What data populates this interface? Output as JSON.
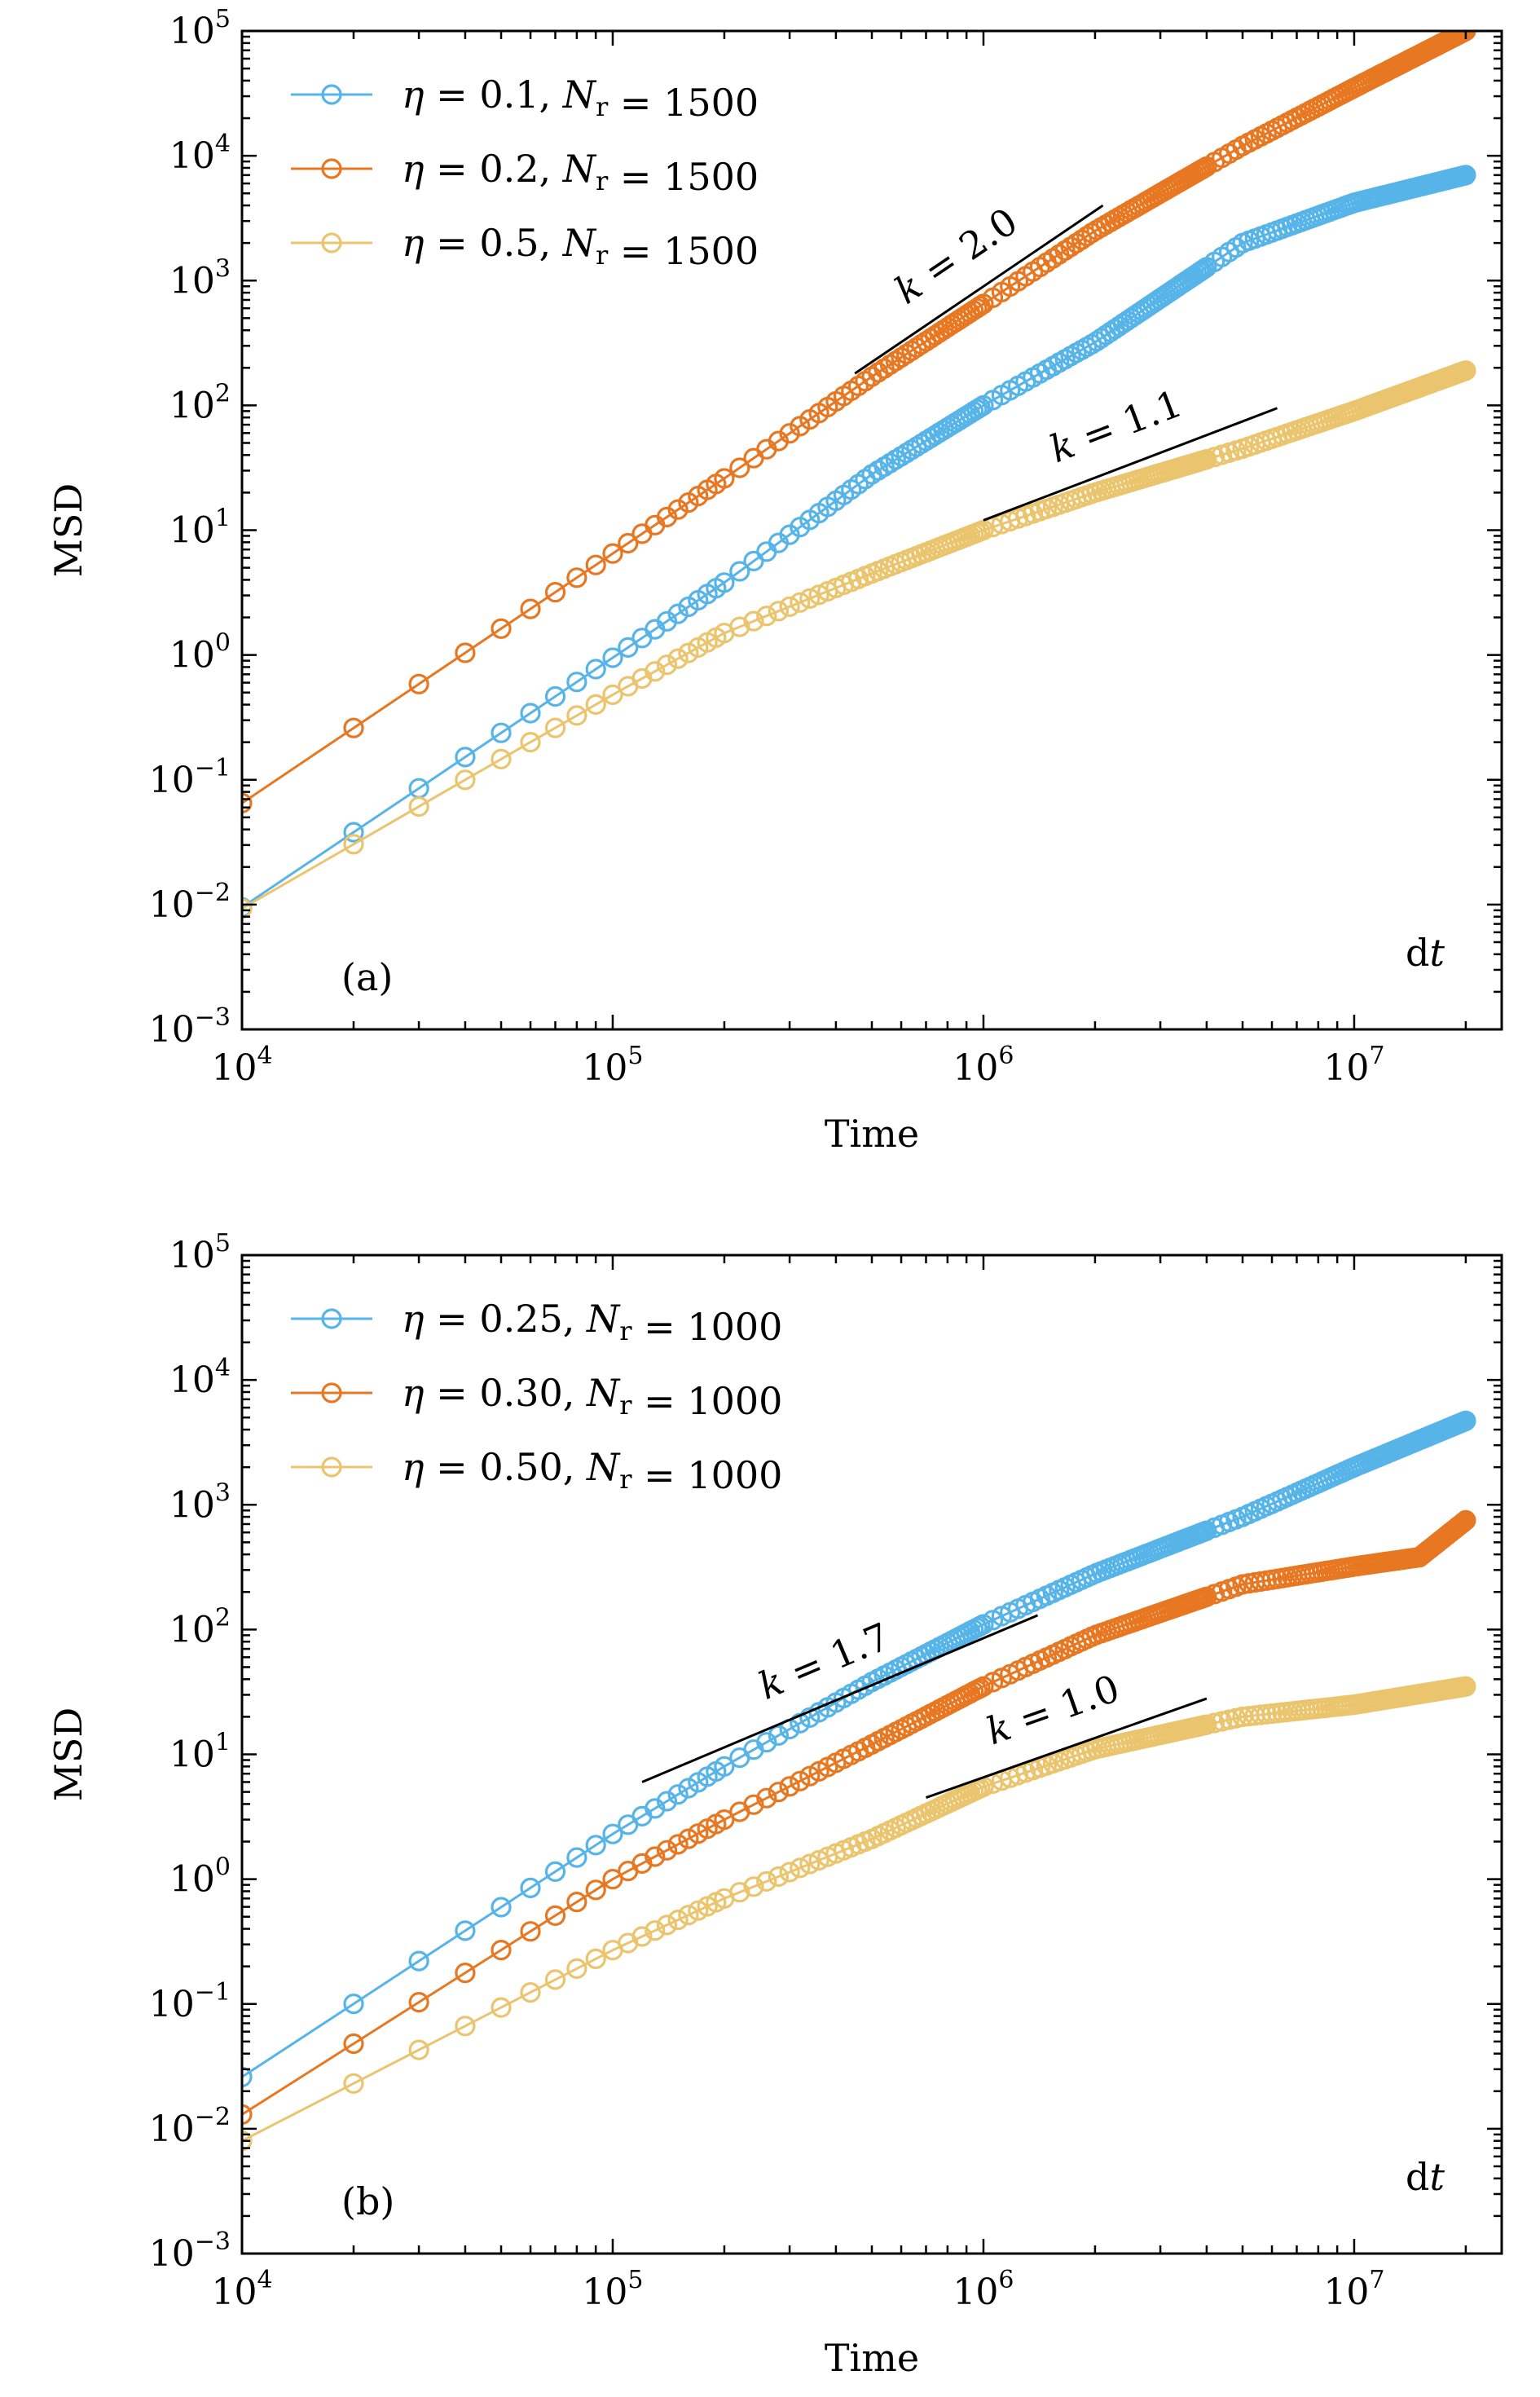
{
  "chart_data": [
    {
      "type": "line",
      "panel_label": "(a)",
      "corner_note": "dt",
      "xlabel": "Time",
      "ylabel": "MSD",
      "xscale": "log",
      "yscale": "log",
      "xlim": [
        10000,
        25000000
      ],
      "ylim": [
        0.001,
        100000
      ],
      "x_ticks": [
        "10^4",
        "10^5",
        "10^6",
        "10^7"
      ],
      "y_ticks": [
        "10^-3",
        "10^-2",
        "10^-1",
        "10^0",
        "10^1",
        "10^2",
        "10^3",
        "10^4",
        "10^5"
      ],
      "legend_position": "top-left",
      "marker": "open-circle",
      "series": [
        {
          "name": "η = 0.1,  Nr = 1500",
          "color": "#56B4E9",
          "points": [
            [
              10000,
              0.0095
            ],
            [
              100000,
              0.95
            ],
            [
              200000,
              3.8
            ],
            [
              500000,
              28
            ],
            [
              1000000,
              100
            ],
            [
              2000000,
              320
            ],
            [
              5000000,
              2000
            ],
            [
              10000000,
              4200
            ],
            [
              20000000,
              7000
            ]
          ]
        },
        {
          "name": "η = 0.2,  Nr = 1500",
          "color": "#E87722",
          "points": [
            [
              10000,
              0.065
            ],
            [
              100000,
              6.5
            ],
            [
              200000,
              26
            ],
            [
              500000,
              170
            ],
            [
              1000000,
              650
            ],
            [
              2000000,
              2500
            ],
            [
              5000000,
              12000
            ],
            [
              10000000,
              35000
            ],
            [
              20000000,
              100000
            ]
          ]
        },
        {
          "name": "η = 0.5,  Nr = 1500",
          "color": "#EBC46E",
          "points": [
            [
              10000,
              0.0093
            ],
            [
              100000,
              0.48
            ],
            [
              200000,
              1.5
            ],
            [
              500000,
              4.5
            ],
            [
              1000000,
              10
            ],
            [
              2000000,
              20
            ],
            [
              5000000,
              45
            ],
            [
              10000000,
              90
            ],
            [
              20000000,
              190
            ]
          ]
        }
      ],
      "annotations": [
        {
          "text": "k = 2.0",
          "x1": 450000,
          "y1": 180,
          "x2": 2100000,
          "y2": 4000
        },
        {
          "text": "k = 1.1",
          "x1": 1000000,
          "y1": 12,
          "x2": 6200000,
          "y2": 95
        }
      ]
    },
    {
      "type": "line",
      "panel_label": "(b)",
      "corner_note": "dt",
      "xlabel": "Time",
      "ylabel": "MSD",
      "xscale": "log",
      "yscale": "log",
      "xlim": [
        10000,
        25000000
      ],
      "ylim": [
        0.001,
        100000
      ],
      "x_ticks": [
        "10^4",
        "10^5",
        "10^6",
        "10^7"
      ],
      "y_ticks": [
        "10^-3",
        "10^-2",
        "10^-1",
        "10^0",
        "10^1",
        "10^2",
        "10^3",
        "10^4",
        "10^5"
      ],
      "legend_position": "top-left",
      "marker": "open-circle",
      "series": [
        {
          "name": "η = 0.25,  Nr = 1000",
          "color": "#56B4E9",
          "points": [
            [
              10000,
              0.026
            ],
            [
              100000,
              2.3
            ],
            [
              200000,
              8
            ],
            [
              500000,
              38
            ],
            [
              1000000,
              110
            ],
            [
              2000000,
              280
            ],
            [
              5000000,
              800
            ],
            [
              10000000,
              2000
            ],
            [
              20000000,
              4700
            ]
          ]
        },
        {
          "name": "η = 0.30,  Nr = 1000",
          "color": "#E87722",
          "points": [
            [
              10000,
              0.013
            ],
            [
              100000,
              1.0
            ],
            [
              200000,
              3.0
            ],
            [
              500000,
              12
            ],
            [
              1000000,
              35
            ],
            [
              2000000,
              90
            ],
            [
              5000000,
              230
            ],
            [
              10000000,
              320
            ],
            [
              15000000,
              380
            ],
            [
              20000000,
              750
            ]
          ]
        },
        {
          "name": "η = 0.50,  Nr = 1000",
          "color": "#EBC46E",
          "points": [
            [
              10000,
              0.008
            ],
            [
              100000,
              0.27
            ],
            [
              200000,
              0.7
            ],
            [
              500000,
              2.1
            ],
            [
              1000000,
              5.5
            ],
            [
              2000000,
              11
            ],
            [
              5000000,
              20
            ],
            [
              10000000,
              25
            ],
            [
              20000000,
              35
            ]
          ]
        }
      ],
      "annotations": [
        {
          "text": "k = 1.7",
          "x1": 120000,
          "y1": 6,
          "x2": 1400000,
          "y2": 130
        },
        {
          "text": "k = 1.0",
          "x1": 700000,
          "y1": 4.5,
          "x2": 4000000,
          "y2": 28
        }
      ]
    }
  ]
}
